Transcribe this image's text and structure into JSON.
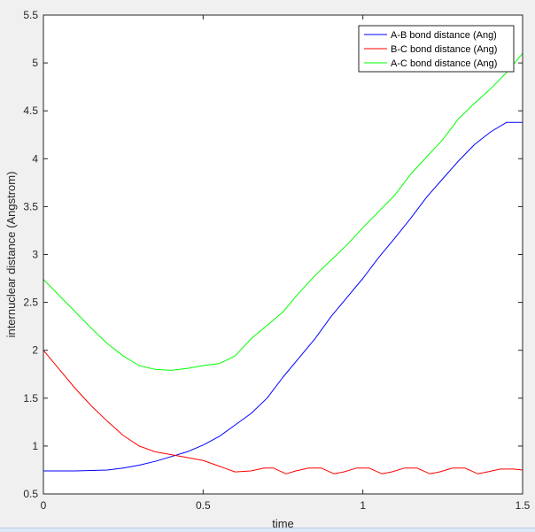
{
  "chart_data": {
    "type": "line",
    "title": "",
    "xlabel": "time",
    "ylabel": "internuclear distance (Angstrom)",
    "xlim": [
      0,
      1.5
    ],
    "ylim": [
      0.5,
      5.5
    ],
    "xticks": [
      "0",
      "0.5",
      "1",
      "1.5"
    ],
    "yticks": [
      "0.5",
      "1",
      "1.5",
      "2",
      "2.5",
      "3",
      "3.5",
      "4",
      "4.5",
      "5",
      "5.5"
    ],
    "grid": false,
    "legend": "top-right",
    "series": [
      {
        "name": "A-B bond distance (Ang)",
        "color": "#0000ff",
        "x": [
          0,
          0.1,
          0.2,
          0.25,
          0.3,
          0.35,
          0.4,
          0.45,
          0.5,
          0.55,
          0.6,
          0.65,
          0.7,
          0.75,
          0.8,
          0.85,
          0.9,
          0.95,
          1.0,
          1.05,
          1.1,
          1.15,
          1.2,
          1.25,
          1.3,
          1.35,
          1.4,
          1.45,
          1.5
        ],
        "y": [
          0.74,
          0.74,
          0.75,
          0.77,
          0.8,
          0.84,
          0.89,
          0.94,
          1.01,
          1.1,
          1.22,
          1.34,
          1.5,
          1.72,
          1.92,
          2.12,
          2.35,
          2.55,
          2.75,
          2.97,
          3.17,
          3.38,
          3.6,
          3.79,
          3.98,
          4.15,
          4.28,
          4.38,
          4.38
        ]
      },
      {
        "name": "B-C bond distance (Ang)",
        "color": "#ff0000",
        "x": [
          0,
          0.05,
          0.1,
          0.15,
          0.2,
          0.25,
          0.3,
          0.35,
          0.4,
          0.45,
          0.5,
          0.55,
          0.6,
          0.65,
          0.69,
          0.72,
          0.76,
          0.79,
          0.83,
          0.87,
          0.91,
          0.94,
          0.98,
          1.02,
          1.06,
          1.09,
          1.13,
          1.17,
          1.21,
          1.24,
          1.28,
          1.32,
          1.36,
          1.39,
          1.43,
          1.47,
          1.5
        ],
        "y": [
          2.0,
          1.8,
          1.6,
          1.42,
          1.26,
          1.11,
          1.0,
          0.94,
          0.91,
          0.88,
          0.85,
          0.79,
          0.73,
          0.74,
          0.77,
          0.77,
          0.71,
          0.74,
          0.77,
          0.77,
          0.71,
          0.73,
          0.77,
          0.77,
          0.71,
          0.73,
          0.77,
          0.77,
          0.71,
          0.73,
          0.77,
          0.77,
          0.71,
          0.73,
          0.76,
          0.76,
          0.75
        ]
      },
      {
        "name": "A-C bond distance (Ang)",
        "color": "#00ff00",
        "x": [
          0,
          0.05,
          0.1,
          0.15,
          0.2,
          0.25,
          0.3,
          0.35,
          0.4,
          0.45,
          0.5,
          0.55,
          0.6,
          0.65,
          0.7,
          0.75,
          0.8,
          0.85,
          0.9,
          0.95,
          1.0,
          1.05,
          1.1,
          1.15,
          1.2,
          1.25,
          1.3,
          1.35,
          1.4,
          1.45,
          1.5
        ],
        "y": [
          2.74,
          2.57,
          2.4,
          2.23,
          2.07,
          1.94,
          1.84,
          1.8,
          1.79,
          1.81,
          1.84,
          1.86,
          1.94,
          2.12,
          2.26,
          2.4,
          2.6,
          2.78,
          2.94,
          3.1,
          3.28,
          3.45,
          3.62,
          3.84,
          4.02,
          4.2,
          4.42,
          4.58,
          4.73,
          4.9,
          5.1
        ]
      }
    ]
  }
}
